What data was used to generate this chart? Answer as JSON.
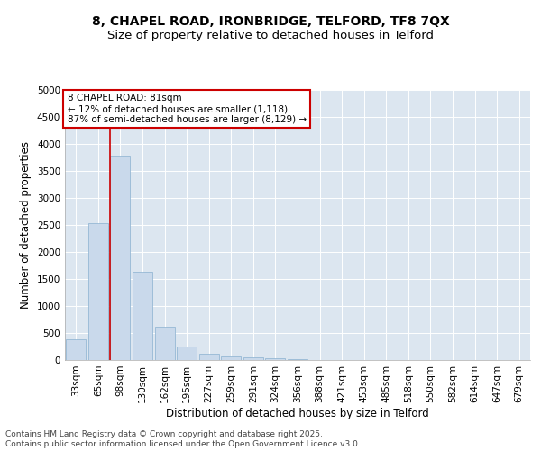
{
  "title_line1": "8, CHAPEL ROAD, IRONBRIDGE, TELFORD, TF8 7QX",
  "title_line2": "Size of property relative to detached houses in Telford",
  "xlabel": "Distribution of detached houses by size in Telford",
  "ylabel": "Number of detached properties",
  "bar_color": "#c9d9eb",
  "bar_edge_color": "#8ab0d0",
  "background_color": "#dce6f0",
  "categories": [
    "33sqm",
    "65sqm",
    "98sqm",
    "130sqm",
    "162sqm",
    "195sqm",
    "227sqm",
    "259sqm",
    "291sqm",
    "324sqm",
    "356sqm",
    "388sqm",
    "421sqm",
    "453sqm",
    "485sqm",
    "518sqm",
    "550sqm",
    "582sqm",
    "614sqm",
    "647sqm",
    "679sqm"
  ],
  "values": [
    380,
    2530,
    3780,
    1640,
    620,
    245,
    120,
    60,
    50,
    35,
    15,
    4,
    2,
    1,
    0,
    0,
    0,
    0,
    0,
    0,
    0
  ],
  "ylim": [
    0,
    5000
  ],
  "yticks": [
    0,
    500,
    1000,
    1500,
    2000,
    2500,
    3000,
    3500,
    4000,
    4500,
    5000
  ],
  "vline_x": 1.52,
  "vline_color": "#cc0000",
  "annotation_line1": "8 CHAPEL ROAD: 81sqm",
  "annotation_line2": "← 12% of detached houses are smaller (1,118)",
  "annotation_line3": "87% of semi-detached houses are larger (8,129) →",
  "footer_line1": "Contains HM Land Registry data © Crown copyright and database right 2025.",
  "footer_line2": "Contains public sector information licensed under the Open Government Licence v3.0.",
  "title_fontsize": 10,
  "subtitle_fontsize": 9.5,
  "axis_label_fontsize": 8.5,
  "tick_fontsize": 7.5,
  "annotation_fontsize": 7.5,
  "footer_fontsize": 6.5
}
